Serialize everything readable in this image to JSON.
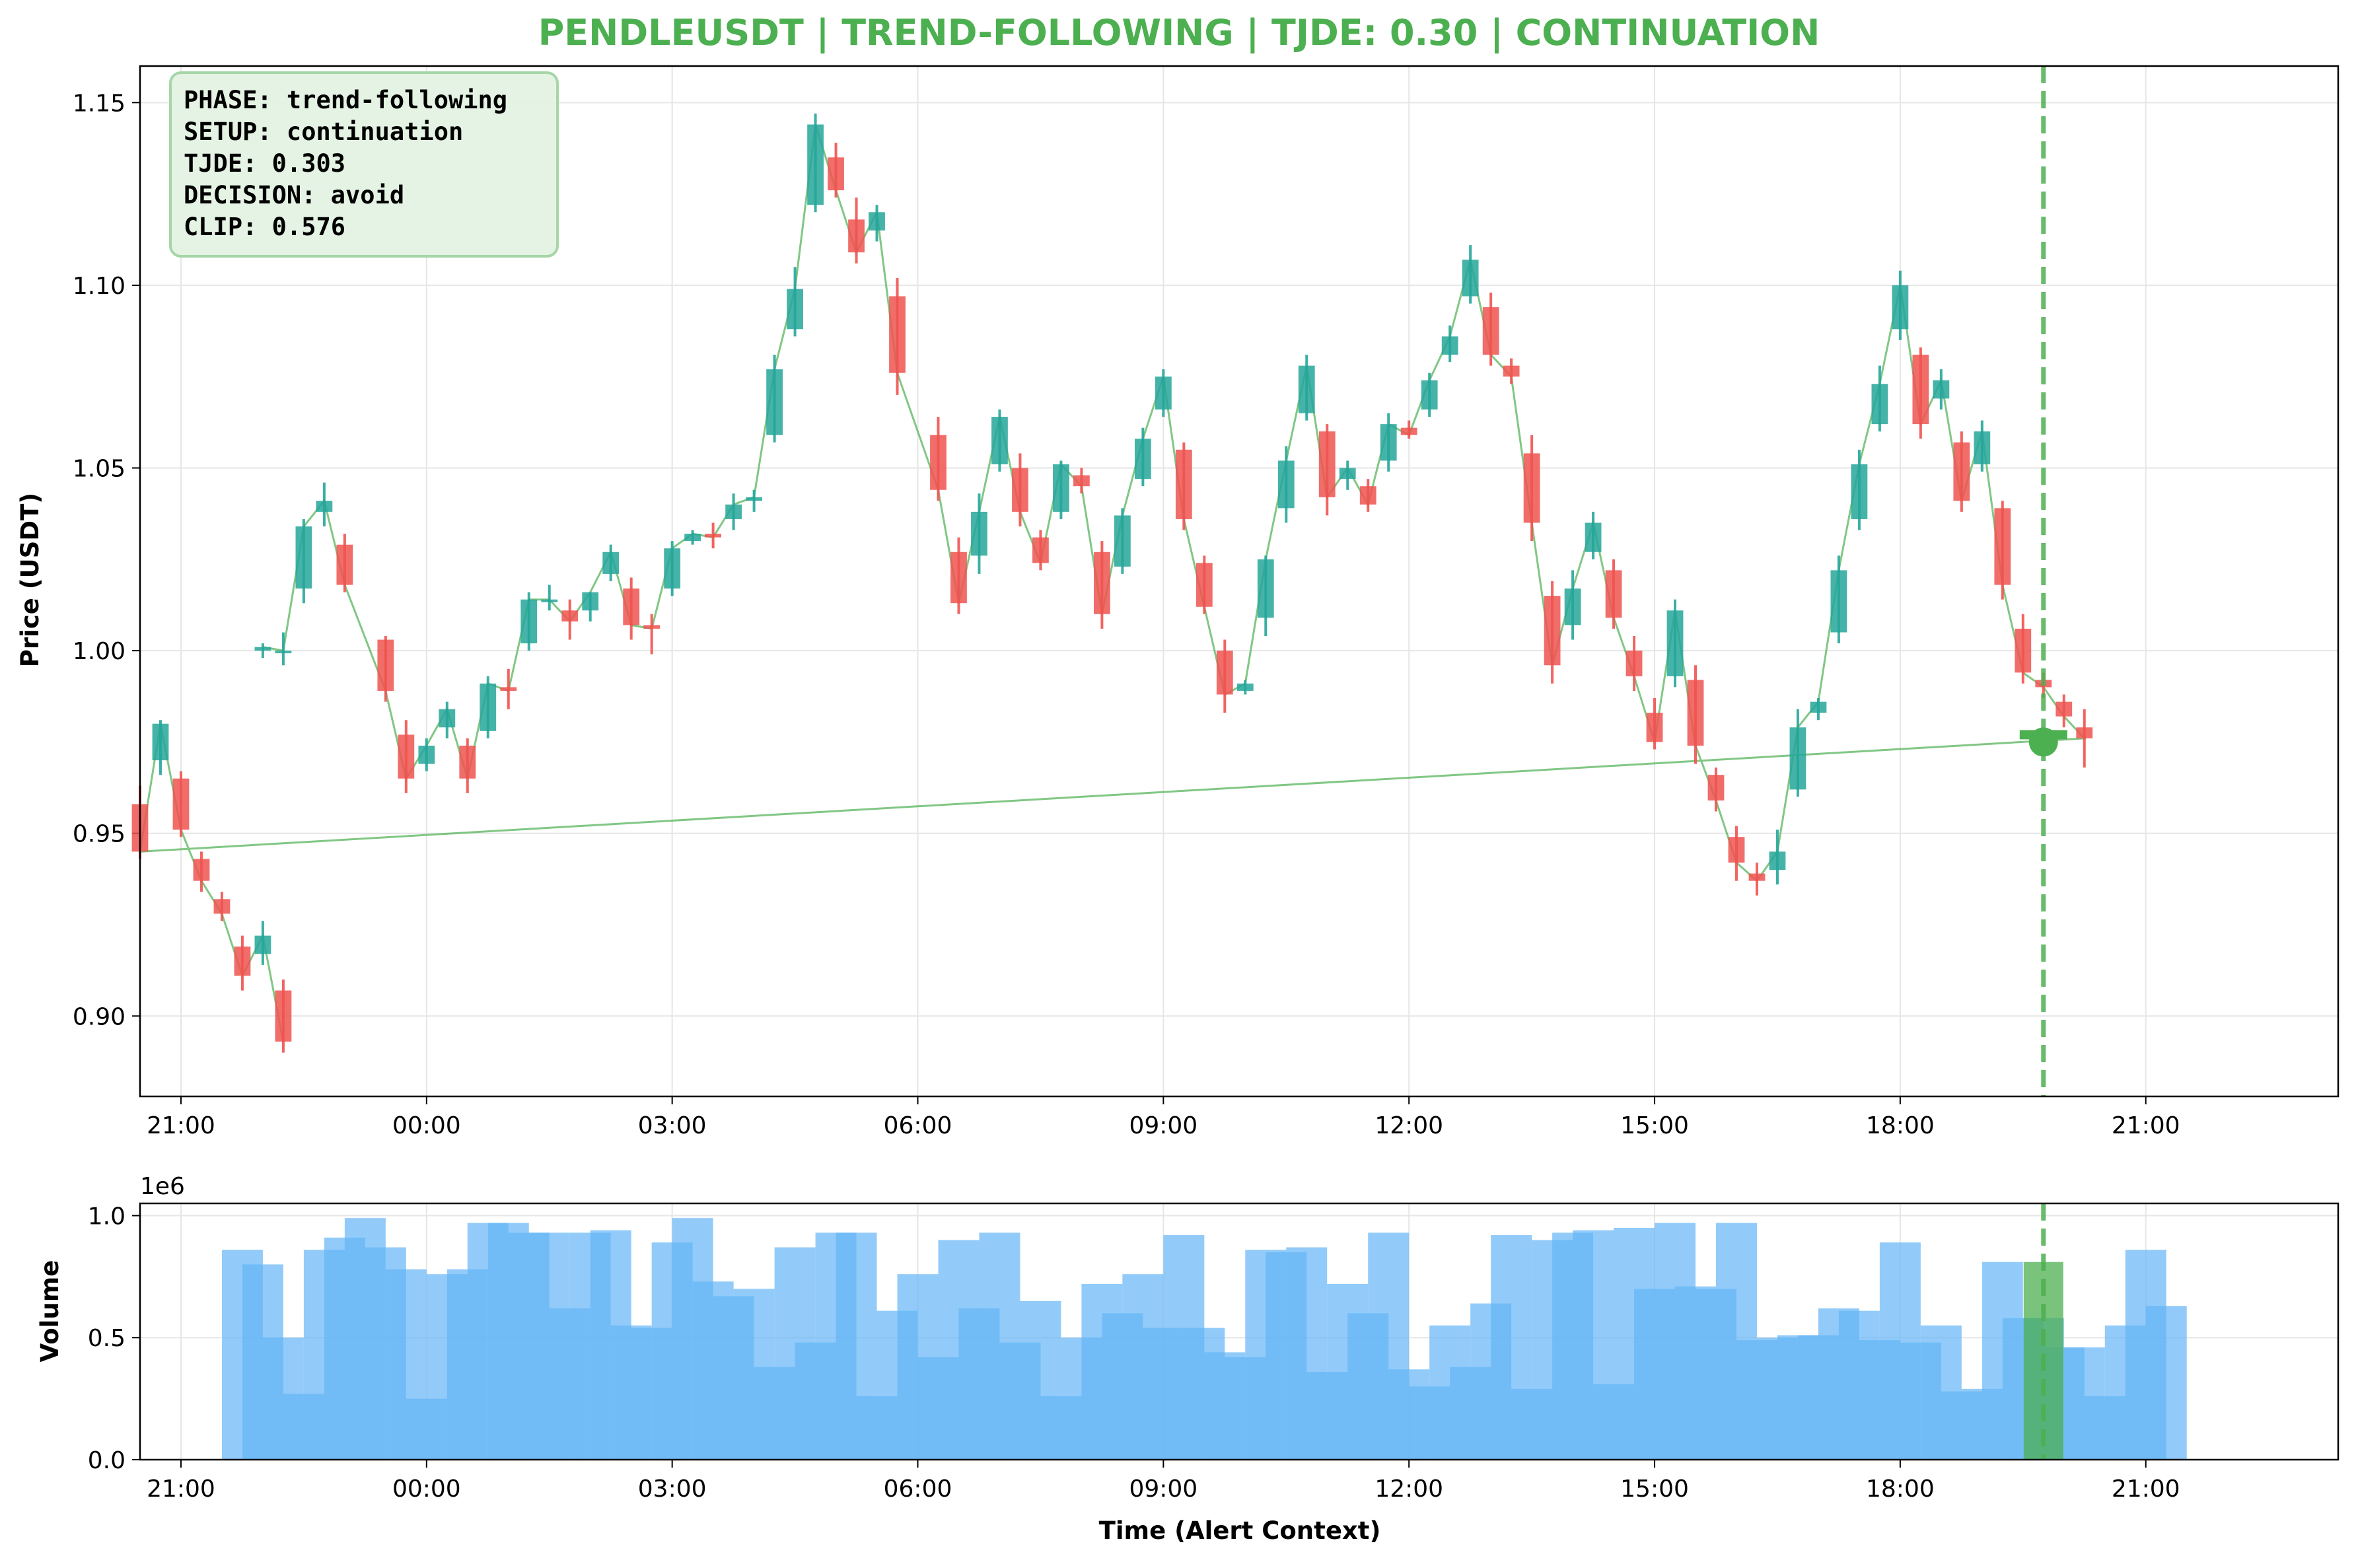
{
  "chart_data": [
    {
      "type": "candlestick",
      "title": "PENDLEUSDT | TREND-FOLLOWING | TJDE: 0.30 | CONTINUATION",
      "title_color": "#4caf50",
      "ylabel": "Price (USDT)",
      "ylim": [
        0.878,
        1.16
      ],
      "yticks": [
        "0.90",
        "0.95",
        "1.00",
        "1.05",
        "1.10",
        "1.15"
      ],
      "xlim_hours": [
        20.5,
        47.35
      ],
      "xticks": [
        "21:00",
        "00:00",
        "03:00",
        "06:00",
        "09:00",
        "12:00",
        "15:00",
        "18:00",
        "21:00"
      ],
      "grid": true,
      "up_color": "#26a69a",
      "down_color": "#ef5350",
      "close_line_color": "#4caf50",
      "alert_time": "19:45",
      "alert_price": 0.975,
      "alert_color": "#4caf50",
      "candles": [
        {
          "t": "22:00",
          "o": 1.0,
          "h": 1.002,
          "l": 0.998,
          "c": 1.001
        },
        {
          "t": "22:15",
          "o": 1.0,
          "h": 1.005,
          "l": 0.996,
          "c": 1.0
        },
        {
          "t": "22:30",
          "o": 1.017,
          "h": 1.036,
          "l": 1.013,
          "c": 1.034
        },
        {
          "t": "22:45",
          "o": 1.038,
          "h": 1.046,
          "l": 1.034,
          "c": 1.041
        },
        {
          "t": "23:00",
          "o": 1.029,
          "h": 1.032,
          "l": 1.016,
          "c": 1.018
        },
        {
          "t": "23:30",
          "o": 1.003,
          "h": 1.004,
          "l": 0.986,
          "c": 0.989
        },
        {
          "t": "23:45",
          "o": 0.977,
          "h": 0.981,
          "l": 0.961,
          "c": 0.965
        },
        {
          "t": "00:00",
          "o": 0.969,
          "h": 0.976,
          "l": 0.967,
          "c": 0.974
        },
        {
          "t": "00:15",
          "o": 0.979,
          "h": 0.986,
          "l": 0.976,
          "c": 0.984
        },
        {
          "t": "00:30",
          "o": 0.974,
          "h": 0.976,
          "l": 0.961,
          "c": 0.965
        },
        {
          "t": "00:45",
          "o": 0.978,
          "h": 0.993,
          "l": 0.976,
          "c": 0.991
        },
        {
          "t": "01:00",
          "o": 0.99,
          "h": 0.995,
          "l": 0.984,
          "c": 0.989
        },
        {
          "t": "01:15",
          "o": 1.002,
          "h": 1.016,
          "l": 1.0,
          "c": 1.014
        },
        {
          "t": "01:30",
          "o": 1.014,
          "h": 1.018,
          "l": 1.011,
          "c": 1.014
        },
        {
          "t": "01:45",
          "o": 1.011,
          "h": 1.014,
          "l": 1.003,
          "c": 1.008
        },
        {
          "t": "02:00",
          "o": 1.011,
          "h": 1.016,
          "l": 1.008,
          "c": 1.016
        },
        {
          "t": "02:15",
          "o": 1.021,
          "h": 1.029,
          "l": 1.019,
          "c": 1.027
        },
        {
          "t": "02:30",
          "o": 1.017,
          "h": 1.02,
          "l": 1.003,
          "c": 1.007
        },
        {
          "t": "02:45",
          "o": 1.007,
          "h": 1.01,
          "l": 0.999,
          "c": 1.006
        },
        {
          "t": "03:00",
          "o": 1.017,
          "h": 1.03,
          "l": 1.015,
          "c": 1.028
        },
        {
          "t": "03:15",
          "o": 1.03,
          "h": 1.033,
          "l": 1.029,
          "c": 1.032
        },
        {
          "t": "03:30",
          "o": 1.032,
          "h": 1.035,
          "l": 1.028,
          "c": 1.031
        },
        {
          "t": "03:45",
          "o": 1.036,
          "h": 1.043,
          "l": 1.033,
          "c": 1.04
        },
        {
          "t": "04:00",
          "o": 1.041,
          "h": 1.044,
          "l": 1.038,
          "c": 1.042
        },
        {
          "t": "04:15",
          "o": 1.059,
          "h": 1.081,
          "l": 1.057,
          "c": 1.077
        },
        {
          "t": "04:30",
          "o": 1.088,
          "h": 1.105,
          "l": 1.086,
          "c": 1.099
        },
        {
          "t": "04:45",
          "o": 1.122,
          "h": 1.147,
          "l": 1.12,
          "c": 1.144
        },
        {
          "t": "05:00",
          "o": 1.135,
          "h": 1.139,
          "l": 1.124,
          "c": 1.126
        },
        {
          "t": "05:15",
          "o": 1.118,
          "h": 1.124,
          "l": 1.106,
          "c": 1.109
        },
        {
          "t": "05:30",
          "o": 1.115,
          "h": 1.122,
          "l": 1.112,
          "c": 1.12
        },
        {
          "t": "05:45",
          "o": 1.097,
          "h": 1.102,
          "l": 1.07,
          "c": 1.076
        },
        {
          "t": "06:15",
          "o": 1.059,
          "h": 1.064,
          "l": 1.041,
          "c": 1.044
        },
        {
          "t": "06:30",
          "o": 1.027,
          "h": 1.031,
          "l": 1.01,
          "c": 1.013
        },
        {
          "t": "06:45",
          "o": 1.026,
          "h": 1.043,
          "l": 1.021,
          "c": 1.038
        },
        {
          "t": "07:00",
          "o": 1.051,
          "h": 1.066,
          "l": 1.049,
          "c": 1.064
        },
        {
          "t": "07:15",
          "o": 1.05,
          "h": 1.054,
          "l": 1.034,
          "c": 1.038
        },
        {
          "t": "07:30",
          "o": 1.031,
          "h": 1.033,
          "l": 1.022,
          "c": 1.024
        },
        {
          "t": "07:45",
          "o": 1.038,
          "h": 1.052,
          "l": 1.036,
          "c": 1.051
        },
        {
          "t": "08:00",
          "o": 1.048,
          "h": 1.05,
          "l": 1.043,
          "c": 1.045
        },
        {
          "t": "08:15",
          "o": 1.027,
          "h": 1.03,
          "l": 1.006,
          "c": 1.01
        },
        {
          "t": "08:30",
          "o": 1.023,
          "h": 1.039,
          "l": 1.021,
          "c": 1.037
        },
        {
          "t": "08:45",
          "o": 1.047,
          "h": 1.061,
          "l": 1.045,
          "c": 1.058
        },
        {
          "t": "09:00",
          "o": 1.066,
          "h": 1.077,
          "l": 1.064,
          "c": 1.075
        },
        {
          "t": "09:15",
          "o": 1.055,
          "h": 1.057,
          "l": 1.033,
          "c": 1.036
        },
        {
          "t": "09:30",
          "o": 1.024,
          "h": 1.026,
          "l": 1.01,
          "c": 1.012
        },
        {
          "t": "09:45",
          "o": 1.0,
          "h": 1.003,
          "l": 0.983,
          "c": 0.988
        },
        {
          "t": "10:00",
          "o": 0.989,
          "h": 0.992,
          "l": 0.988,
          "c": 0.991
        },
        {
          "t": "10:15",
          "o": 1.009,
          "h": 1.026,
          "l": 1.004,
          "c": 1.025
        },
        {
          "t": "10:30",
          "o": 1.039,
          "h": 1.056,
          "l": 1.035,
          "c": 1.052
        },
        {
          "t": "10:45",
          "o": 1.065,
          "h": 1.081,
          "l": 1.063,
          "c": 1.078
        },
        {
          "t": "11:00",
          "o": 1.06,
          "h": 1.062,
          "l": 1.037,
          "c": 1.042
        },
        {
          "t": "11:15",
          "o": 1.047,
          "h": 1.052,
          "l": 1.044,
          "c": 1.05
        },
        {
          "t": "11:30",
          "o": 1.045,
          "h": 1.047,
          "l": 1.038,
          "c": 1.04
        },
        {
          "t": "11:45",
          "o": 1.052,
          "h": 1.065,
          "l": 1.049,
          "c": 1.062
        },
        {
          "t": "12:00",
          "o": 1.061,
          "h": 1.063,
          "l": 1.058,
          "c": 1.059
        },
        {
          "t": "12:15",
          "o": 1.066,
          "h": 1.076,
          "l": 1.064,
          "c": 1.074
        },
        {
          "t": "12:30",
          "o": 1.081,
          "h": 1.089,
          "l": 1.079,
          "c": 1.086
        },
        {
          "t": "12:45",
          "o": 1.097,
          "h": 1.111,
          "l": 1.095,
          "c": 1.107
        },
        {
          "t": "13:00",
          "o": 1.094,
          "h": 1.098,
          "l": 1.078,
          "c": 1.081
        },
        {
          "t": "13:15",
          "o": 1.078,
          "h": 1.08,
          "l": 1.073,
          "c": 1.075
        },
        {
          "t": "13:30",
          "o": 1.054,
          "h": 1.059,
          "l": 1.03,
          "c": 1.035
        },
        {
          "t": "13:45",
          "o": 1.015,
          "h": 1.019,
          "l": 0.991,
          "c": 0.996
        },
        {
          "t": "14:00",
          "o": 1.007,
          "h": 1.022,
          "l": 1.003,
          "c": 1.017
        },
        {
          "t": "14:15",
          "o": 1.027,
          "h": 1.038,
          "l": 1.025,
          "c": 1.035
        },
        {
          "t": "14:30",
          "o": 1.022,
          "h": 1.025,
          "l": 1.006,
          "c": 1.009
        },
        {
          "t": "14:45",
          "o": 1.0,
          "h": 1.004,
          "l": 0.989,
          "c": 0.993
        },
        {
          "t": "15:00",
          "o": 0.983,
          "h": 0.987,
          "l": 0.973,
          "c": 0.975
        },
        {
          "t": "15:15",
          "o": 0.993,
          "h": 1.014,
          "l": 0.99,
          "c": 1.011
        },
        {
          "t": "15:30",
          "o": 0.992,
          "h": 0.996,
          "l": 0.969,
          "c": 0.974
        },
        {
          "t": "15:45",
          "o": 0.966,
          "h": 0.968,
          "l": 0.956,
          "c": 0.959
        },
        {
          "t": "16:00",
          "o": 0.949,
          "h": 0.952,
          "l": 0.937,
          "c": 0.942
        },
        {
          "t": "16:15",
          "o": 0.939,
          "h": 0.942,
          "l": 0.933,
          "c": 0.937
        },
        {
          "t": "16:30",
          "o": 0.94,
          "h": 0.951,
          "l": 0.936,
          "c": 0.945
        },
        {
          "t": "16:45",
          "o": 0.962,
          "h": 0.984,
          "l": 0.96,
          "c": 0.979
        },
        {
          "t": "17:00",
          "o": 0.983,
          "h": 0.987,
          "l": 0.981,
          "c": 0.986
        },
        {
          "t": "17:15",
          "o": 1.005,
          "h": 1.026,
          "l": 1.002,
          "c": 1.022
        },
        {
          "t": "17:30",
          "o": 1.036,
          "h": 1.055,
          "l": 1.033,
          "c": 1.051
        },
        {
          "t": "17:45",
          "o": 1.062,
          "h": 1.078,
          "l": 1.06,
          "c": 1.073
        },
        {
          "t": "18:00",
          "o": 1.088,
          "h": 1.104,
          "l": 1.085,
          "c": 1.1
        },
        {
          "t": "18:15",
          "o": 1.081,
          "h": 1.083,
          "l": 1.058,
          "c": 1.062
        },
        {
          "t": "18:30",
          "o": 1.069,
          "h": 1.077,
          "l": 1.066,
          "c": 1.074
        },
        {
          "t": "18:45",
          "o": 1.057,
          "h": 1.06,
          "l": 1.038,
          "c": 1.041
        },
        {
          "t": "19:00",
          "o": 1.051,
          "h": 1.063,
          "l": 1.049,
          "c": 1.06
        },
        {
          "t": "19:15",
          "o": 1.039,
          "h": 1.041,
          "l": 1.014,
          "c": 1.018
        },
        {
          "t": "19:30",
          "o": 1.006,
          "h": 1.01,
          "l": 0.991,
          "c": 0.994
        },
        {
          "t": "19:45",
          "o": 0.992,
          "h": 0.994,
          "l": 0.987,
          "c": 0.99
        },
        {
          "t": "20:00",
          "o": 0.986,
          "h": 0.988,
          "l": 0.979,
          "c": 0.982
        },
        {
          "t": "20:15",
          "o": 0.979,
          "h": 0.984,
          "l": 0.968,
          "c": 0.976
        },
        {
          "t": "20:30",
          "o": 0.958,
          "h": 0.963,
          "l": 0.943,
          "c": 0.945
        },
        {
          "t": "20:45",
          "o": 0.97,
          "h": 0.981,
          "l": 0.966,
          "c": 0.98
        },
        {
          "t": "21:00",
          "o": 0.965,
          "h": 0.967,
          "l": 0.949,
          "c": 0.951
        },
        {
          "t": "21:15",
          "o": 0.943,
          "h": 0.945,
          "l": 0.934,
          "c": 0.937
        },
        {
          "t": "21:30",
          "o": 0.932,
          "h": 0.934,
          "l": 0.926,
          "c": 0.928
        },
        {
          "t": "21:45",
          "o": 0.919,
          "h": 0.922,
          "l": 0.907,
          "c": 0.911
        },
        {
          "t": "22:00",
          "o": 0.917,
          "h": 0.926,
          "l": 0.914,
          "c": 0.922
        },
        {
          "t": "22:15",
          "o": 0.907,
          "h": 0.91,
          "l": 0.89,
          "c": 0.893
        }
      ]
    },
    {
      "type": "bar",
      "ylabel": "Volume",
      "xlabel": "Time (Alert Context)",
      "offset_label": "1e6",
      "ylim": [
        0,
        1050000
      ],
      "yticks": [
        "0.0",
        "0.5",
        "1.0"
      ],
      "xlim_hours": [
        20.5,
        47.35
      ],
      "xticks": [
        "21:00",
        "00:00",
        "03:00",
        "06:00",
        "09:00",
        "12:00",
        "15:00",
        "18:00",
        "21:00"
      ],
      "grid": true,
      "bar_color": "#64b5f6",
      "alert_bar_color": "#4caf50",
      "alert_time": "19:45",
      "bar_width_hours": 0.5,
      "x_start": "21:45",
      "x_step_minutes": 15,
      "values": [
        860000,
        800000,
        500000,
        270000,
        860000,
        910000,
        990000,
        870000,
        780000,
        250000,
        760000,
        780000,
        970000,
        970000,
        930000,
        930000,
        620000,
        930000,
        940000,
        550000,
        540000,
        890000,
        990000,
        730000,
        670000,
        700000,
        380000,
        870000,
        480000,
        930000,
        930000,
        260000,
        610000,
        760000,
        420000,
        900000,
        620000,
        930000,
        480000,
        650000,
        260000,
        500000,
        720000,
        600000,
        760000,
        540000,
        920000,
        540000,
        440000,
        420000,
        860000,
        850000,
        870000,
        360000,
        720000,
        600000,
        930000,
        370000,
        300000,
        550000,
        380000,
        640000,
        920000,
        290000,
        900000,
        930000,
        940000,
        310000,
        950000,
        700000,
        970000,
        710000,
        700000,
        970000,
        490000,
        500000,
        510000,
        510000,
        620000,
        610000,
        490000,
        890000,
        480000,
        550000,
        280000,
        290000,
        810000,
        580000,
        580000,
        460000,
        460000,
        260000,
        550000,
        860000,
        630000
      ]
    }
  ],
  "info_box": {
    "lines": [
      "PHASE: trend-following",
      "SETUP: continuation",
      "TJDE: 0.303",
      "DECISION: avoid",
      "CLIP: 0.576"
    ],
    "bg_color": "#e3f2e1",
    "border_color": "#a5d6a7"
  }
}
